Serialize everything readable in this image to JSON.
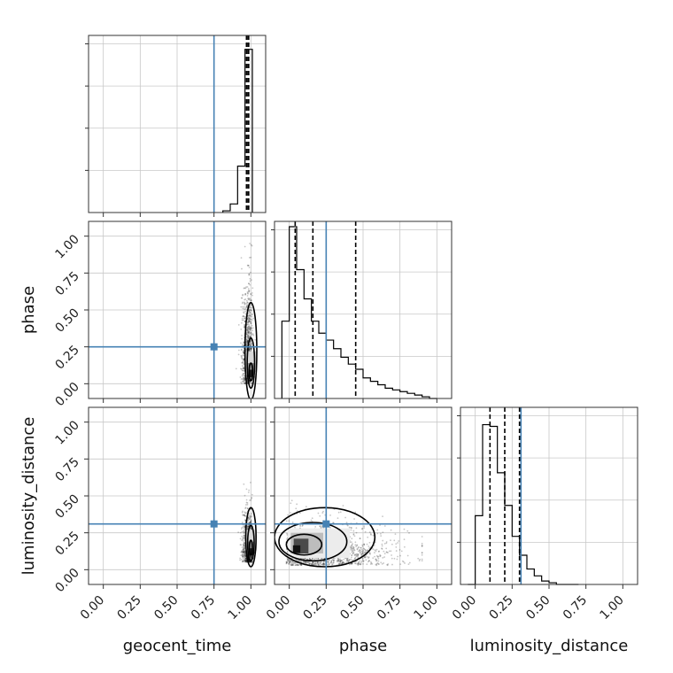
{
  "chart_data": {
    "type": "corner",
    "parameters": [
      "geocent_time",
      "phase",
      "luminosity_distance"
    ],
    "axis_range": [
      -0.1,
      1.1
    ],
    "tick_labels": [
      "0.00",
      "0.25",
      "0.50",
      "0.75",
      "1.00"
    ],
    "tick_values": [
      0,
      0.25,
      0.5,
      0.75,
      1.0
    ],
    "grid": true,
    "truth_color": "#4682b4",
    "truths": {
      "geocent_time": 0.75,
      "phase": 0.25,
      "luminosity_distance": 0.31
    },
    "histograms": {
      "geocent_time": {
        "bin_edges": [
          0.81,
          0.86,
          0.91,
          0.96,
          1.01
        ],
        "counts": [
          0.01,
          0.05,
          0.27,
          0.95
        ],
        "quantiles": [
          0.97,
          0.98,
          0.985
        ]
      },
      "phase": {
        "bin_edges": [
          -0.05,
          0.0,
          0.05,
          0.1,
          0.15,
          0.2,
          0.25,
          0.3,
          0.35,
          0.4,
          0.45,
          0.5,
          0.55,
          0.6,
          0.65,
          0.7,
          0.75,
          0.8,
          0.85,
          0.9,
          0.95,
          1.0
        ],
        "counts": [
          0.45,
          1.0,
          0.75,
          0.58,
          0.45,
          0.38,
          0.34,
          0.29,
          0.24,
          0.2,
          0.17,
          0.12,
          0.1,
          0.08,
          0.06,
          0.05,
          0.04,
          0.03,
          0.02,
          0.01,
          0.0
        ],
        "quantiles": [
          0.04,
          0.16,
          0.45
        ]
      },
      "luminosity_distance": {
        "bin_edges": [
          -0.05,
          0.0,
          0.05,
          0.1,
          0.15,
          0.2,
          0.25,
          0.3,
          0.35,
          0.4,
          0.45,
          0.5,
          0.55,
          0.6,
          0.65,
          0.7
        ],
        "counts": [
          0.0,
          0.4,
          0.93,
          0.92,
          0.65,
          0.46,
          0.28,
          0.17,
          0.09,
          0.05,
          0.02,
          0.01,
          0.0,
          0.0,
          0.0
        ],
        "quantiles": [
          0.1,
          0.2,
          0.3
        ]
      }
    },
    "joint": [
      {
        "x": "geocent_time",
        "y": "phase",
        "center": [
          1.0,
          0.15
        ]
      },
      {
        "x": "geocent_time",
        "y": "luminosity_distance",
        "center": [
          1.0,
          0.2
        ]
      },
      {
        "x": "phase",
        "y": "luminosity_distance",
        "center": [
          0.1,
          0.18
        ]
      }
    ]
  }
}
